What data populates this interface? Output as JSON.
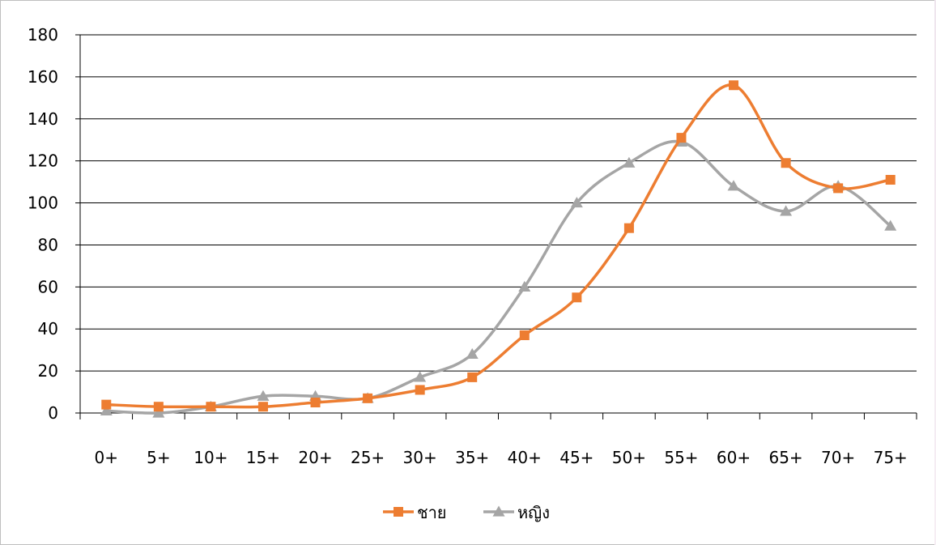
{
  "chart_data": {
    "type": "line",
    "title": "",
    "xlabel": "",
    "ylabel": "",
    "categories": [
      "0+",
      "5+",
      "10+",
      "15+",
      "20+",
      "25+",
      "30+",
      "35+",
      "40+",
      "45+",
      "50+",
      "55+",
      "60+",
      "65+",
      "70+",
      "75+"
    ],
    "ylim": [
      0,
      180
    ],
    "yticks": [
      "0",
      "20",
      "40",
      "60",
      "80",
      "100",
      "120",
      "140",
      "160",
      "180"
    ],
    "grid": "horizontal",
    "smooth": true,
    "legend_position": "bottom",
    "series": [
      {
        "name": "ชาย",
        "color": "#ED7D31",
        "marker": "square",
        "values": [
          4,
          3,
          3,
          3,
          5,
          7,
          11,
          17,
          37,
          55,
          88,
          131,
          156,
          119,
          107,
          111
        ]
      },
      {
        "name": "หญิง",
        "color": "#A5A5A5",
        "marker": "triangle",
        "values": [
          1,
          0,
          3,
          8,
          8,
          7,
          17,
          28,
          60,
          100,
          119,
          129,
          108,
          96,
          108,
          89
        ]
      }
    ]
  }
}
